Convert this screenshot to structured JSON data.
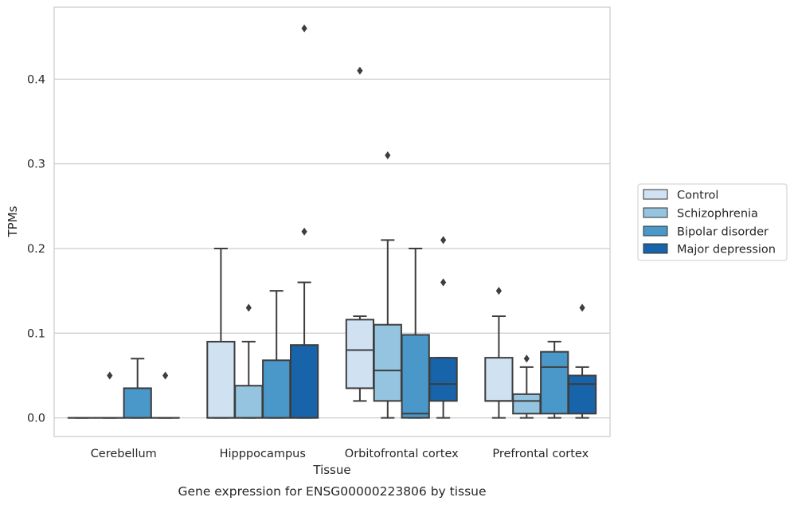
{
  "chart_data": {
    "type": "box",
    "title": "Gene expression for ENSG00000223806 by tissue",
    "xlabel": "Tissue",
    "ylabel": "TPMs",
    "ylim": [
      -0.022,
      0.485
    ],
    "yticks": [
      0.0,
      0.1,
      0.2,
      0.3,
      0.4
    ],
    "ytick_labels": [
      "0.0",
      "0.1",
      "0.2",
      "0.3",
      "0.4"
    ],
    "grid": "horizontal",
    "legend_position": "right",
    "categories": [
      "Cerebellum",
      "Hipppocampus",
      "Orbitofrontal cortex",
      "Prefrontal cortex"
    ],
    "series": [
      {
        "name": "Control",
        "color": "#d0e1f2",
        "boxes": [
          {
            "whislo": 0,
            "q1": 0,
            "med": 0,
            "q3": 0,
            "whishi": 0,
            "fliers": []
          },
          {
            "whislo": 0,
            "q1": 0,
            "med": 0,
            "q3": 0.09,
            "whishi": 0.2,
            "fliers": []
          },
          {
            "whislo": 0.02,
            "q1": 0.035,
            "med": 0.08,
            "q3": 0.116,
            "whishi": 0.12,
            "fliers": [
              0.41
            ]
          },
          {
            "whislo": 0,
            "q1": 0.02,
            "med": 0.02,
            "q3": 0.071,
            "whishi": 0.12,
            "fliers": [
              0.15
            ]
          }
        ]
      },
      {
        "name": "Schizophrenia",
        "color": "#94c4df",
        "boxes": [
          {
            "whislo": 0,
            "q1": 0,
            "med": 0,
            "q3": 0,
            "whishi": 0,
            "fliers": [
              0.05
            ]
          },
          {
            "whislo": 0,
            "q1": 0,
            "med": 0,
            "q3": 0.038,
            "whishi": 0.09,
            "fliers": [
              0.13
            ]
          },
          {
            "whislo": 0,
            "q1": 0.02,
            "med": 0.056,
            "q3": 0.11,
            "whishi": 0.21,
            "fliers": [
              0.31
            ]
          },
          {
            "whislo": 0,
            "q1": 0.005,
            "med": 0.02,
            "q3": 0.028,
            "whishi": 0.06,
            "fliers": [
              0.07
            ]
          }
        ]
      },
      {
        "name": "Bipolar disorder",
        "color": "#4a98c9",
        "boxes": [
          {
            "whislo": 0,
            "q1": 0,
            "med": 0,
            "q3": 0.035,
            "whishi": 0.07,
            "fliers": []
          },
          {
            "whislo": 0,
            "q1": 0,
            "med": 0,
            "q3": 0.068,
            "whishi": 0.15,
            "fliers": []
          },
          {
            "whislo": 0,
            "q1": 0,
            "med": 0.005,
            "q3": 0.098,
            "whishi": 0.2,
            "fliers": []
          },
          {
            "whislo": 0,
            "q1": 0.005,
            "med": 0.06,
            "q3": 0.078,
            "whishi": 0.09,
            "fliers": []
          }
        ]
      },
      {
        "name": "Major depression",
        "color": "#1764ab",
        "boxes": [
          {
            "whislo": 0,
            "q1": 0,
            "med": 0,
            "q3": 0,
            "whishi": 0,
            "fliers": [
              0.05
            ]
          },
          {
            "whislo": 0,
            "q1": 0,
            "med": 0,
            "q3": 0.086,
            "whishi": 0.16,
            "fliers": [
              0.22,
              0.46
            ]
          },
          {
            "whislo": 0,
            "q1": 0.02,
            "med": 0.04,
            "q3": 0.071,
            "whishi": 0.071,
            "fliers": [
              0.16,
              0.21
            ]
          },
          {
            "whislo": 0,
            "q1": 0.005,
            "med": 0.04,
            "q3": 0.05,
            "whishi": 0.06,
            "fliers": [
              0.13
            ]
          }
        ]
      }
    ]
  }
}
